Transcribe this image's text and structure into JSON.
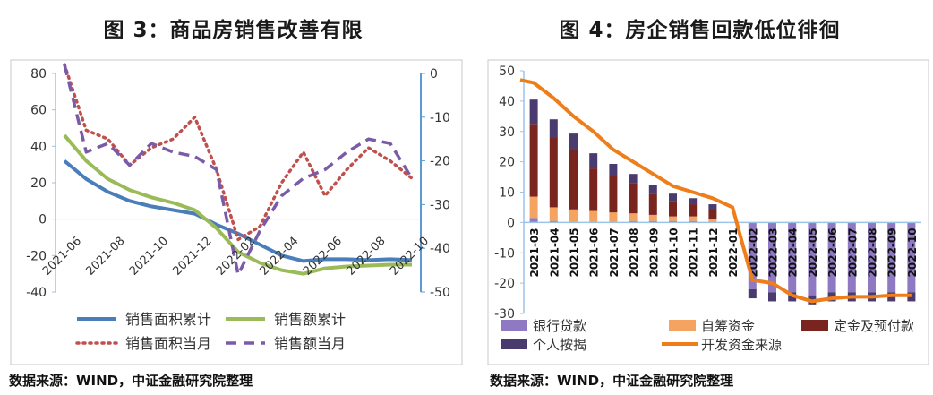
{
  "chart_data": [
    {
      "type": "line",
      "title": "图 3：商品房销售改善有限",
      "x": [
        "2021-06",
        "2021-07",
        "2021-08",
        "2021-09",
        "2021-10",
        "2021-11",
        "2021-12",
        "2022-01",
        "2022-02",
        "2022-03",
        "2022-04",
        "2022-05",
        "2022-06",
        "2022-07",
        "2022-08",
        "2022-09",
        "2022-10"
      ],
      "x_tick_labels": [
        "2021-06",
        "2021-08",
        "2021-10",
        "2021-12",
        "2022-02",
        "2022-04",
        "2022-06",
        "2022-08",
        "2022-10"
      ],
      "ylim_left": [
        -40,
        80
      ],
      "ylim_right": [
        -50,
        0
      ],
      "yticks_left": [
        80,
        60,
        40,
        20,
        0,
        -20,
        -40
      ],
      "yticks_right": [
        0,
        -10,
        -20,
        -30,
        -40,
        -50
      ],
      "series": [
        {
          "name": "销售面积累计",
          "axis": "left",
          "style": "solid",
          "color": "#4a7ebb",
          "values": [
            32,
            22,
            15,
            10,
            7,
            5,
            3,
            -3,
            -8,
            -14,
            -20,
            -23,
            -22,
            -22,
            -22.5,
            -22,
            -22.5
          ]
        },
        {
          "name": "销售额累计",
          "axis": "left",
          "style": "solid",
          "color": "#9bbb59",
          "values": [
            46,
            32,
            22,
            16,
            12,
            9,
            5,
            -5,
            -18,
            -24,
            -28,
            -30,
            -27,
            -26,
            -25.5,
            -25,
            -25
          ]
        },
        {
          "name": "销售面积当月",
          "axis": "right",
          "style": "dotted",
          "color": "#c0504d",
          "values": [
            2,
            -13,
            -15,
            -21,
            -17,
            -15,
            -10,
            -22,
            -38,
            -35,
            -25,
            -18,
            -28,
            -22,
            -17,
            -20,
            -24
          ]
        },
        {
          "name": "销售额当月",
          "axis": "right",
          "style": "dashed",
          "color": "#7a5ba8",
          "values": [
            2,
            -18,
            -16,
            -21,
            -16,
            -18,
            -19,
            -22,
            -46,
            -36,
            -28,
            -24,
            -22,
            -18,
            -15,
            -16,
            -24
          ]
        }
      ],
      "legend": "bottom",
      "source": "数据来源：WIND，中证金融研究院整理"
    },
    {
      "type": "bar",
      "title": "图 4：房企销售回款低位徘徊",
      "categories": [
        "2021-03",
        "2021-04",
        "2021-05",
        "2021-06",
        "2021-07",
        "2021-08",
        "2021-09",
        "2021-10",
        "2021-11",
        "2021-12",
        "2022-01",
        "2022-02",
        "2022-03",
        "2022-04",
        "2022-05",
        "2022-06",
        "2022-07",
        "2022-08",
        "2022-09",
        "2022-10"
      ],
      "ylim": [
        -30,
        50
      ],
      "yticks": [
        50,
        40,
        30,
        20,
        10,
        0,
        -10,
        -20,
        -30
      ],
      "stacked": true,
      "series": [
        {
          "name": "银行贷款",
          "color": "#8f79c2",
          "values": [
            1.5,
            0.5,
            0.3,
            0.3,
            0.3,
            0.5,
            0.5,
            0.5,
            0.5,
            0,
            0,
            -22,
            -23,
            -23,
            -24,
            -23,
            -23,
            -23,
            -23,
            -23
          ]
        },
        {
          "name": "自筹资金",
          "color": "#f4a460",
          "values": [
            7,
            4.5,
            4,
            3.5,
            3,
            2.5,
            2,
            1.5,
            1.5,
            1,
            0,
            0,
            0,
            0,
            0,
            0,
            0,
            0,
            0,
            0
          ]
        },
        {
          "name": "定金及预付款",
          "color": "#7a2420",
          "values": [
            24,
            23,
            20,
            14,
            12,
            10,
            7,
            5,
            4,
            3,
            0,
            0,
            0,
            0,
            0,
            0,
            0,
            0,
            0,
            0
          ]
        },
        {
          "name": "个人按揭",
          "color": "#4a3b6e",
          "values": [
            8,
            6,
            5,
            5,
            4,
            3,
            3,
            2.5,
            2,
            2,
            0,
            -3,
            -3,
            -3,
            -3,
            -3,
            -3,
            -3,
            -3,
            -3
          ]
        },
        {
          "name": "开发资金来源",
          "color": "#ee7d1a",
          "type": "line",
          "values": [
            46,
            41,
            35,
            30,
            24,
            20,
            16,
            12,
            10,
            8,
            5,
            -19,
            -20,
            -24,
            -26,
            -25,
            -24.5,
            -24.5,
            -24,
            -24
          ]
        }
      ],
      "legend": "bottom",
      "source": "数据来源：WIND，中证金融研究院整理"
    }
  ]
}
